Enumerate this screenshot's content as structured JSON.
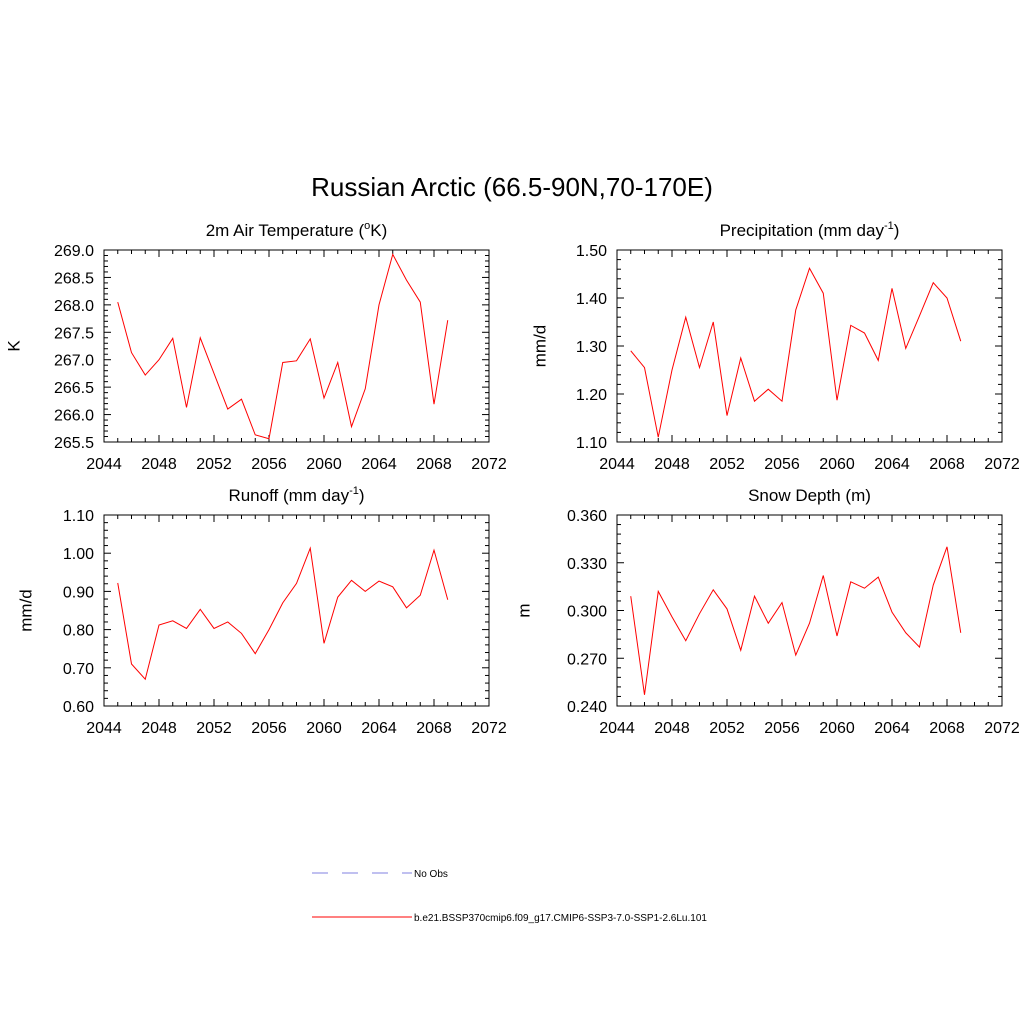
{
  "title": "Russian Arctic (66.5-90N,70-170E)",
  "legend": {
    "items": [
      {
        "label": "No Obs",
        "color": "#9a9ae6",
        "style": "dashed"
      },
      {
        "label": "b.e21.BSSP370cmip6.f09_g17.CMIP6-SSP3-7.0-SSP1-2.6Lu.101",
        "color": "#ff0000",
        "style": "solid"
      }
    ]
  },
  "chart_data": [
    {
      "type": "line",
      "title": "2m Air Temperature (",
      "title_sup": "o",
      "title_tail": "K)",
      "ylabel": "K",
      "xlim": [
        2044,
        2072
      ],
      "xticks": [
        "2044",
        "2048",
        "2052",
        "2056",
        "2060",
        "2064",
        "2068",
        "2072"
      ],
      "ylim": [
        265.5,
        269.0
      ],
      "yticks": [
        "265.5",
        "266.0",
        "266.5",
        "267.0",
        "267.5",
        "268.0",
        "268.5",
        "269.0"
      ],
      "x": [
        2045,
        2046,
        2047,
        2048,
        2049,
        2050,
        2051,
        2052,
        2053,
        2054,
        2055,
        2056,
        2057,
        2058,
        2059,
        2060,
        2061,
        2062,
        2063,
        2064,
        2065,
        2066,
        2067,
        2068,
        2069
      ],
      "series": [
        {
          "color": "#ff0000",
          "values": [
            268.05,
            267.13,
            266.72,
            267.0,
            267.39,
            266.13,
            267.4,
            266.75,
            266.1,
            266.28,
            265.63,
            265.56,
            266.95,
            266.98,
            267.38,
            266.3,
            266.95,
            265.78,
            266.47,
            268.0,
            268.92,
            268.45,
            268.05,
            266.19,
            267.72
          ]
        }
      ]
    },
    {
      "type": "line",
      "title": "Precipitation (mm day",
      "title_sup": "-1",
      "title_tail": ")",
      "ylabel": "mm/d",
      "xlim": [
        2044,
        2072
      ],
      "xticks": [
        "2044",
        "2048",
        "2052",
        "2056",
        "2060",
        "2064",
        "2068",
        "2072"
      ],
      "ylim": [
        1.1,
        1.5
      ],
      "yticks": [
        "1.10",
        "1.20",
        "1.30",
        "1.40",
        "1.50"
      ],
      "x": [
        2045,
        2046,
        2047,
        2048,
        2049,
        2050,
        2051,
        2052,
        2053,
        2054,
        2055,
        2056,
        2057,
        2058,
        2059,
        2060,
        2061,
        2062,
        2063,
        2064,
        2065,
        2066,
        2067,
        2068,
        2069
      ],
      "series": [
        {
          "color": "#ff0000",
          "values": [
            1.29,
            1.255,
            1.11,
            1.25,
            1.36,
            1.255,
            1.35,
            1.155,
            1.275,
            1.185,
            1.21,
            1.185,
            1.375,
            1.462,
            1.41,
            1.187,
            1.343,
            1.327,
            1.27,
            1.42,
            1.295,
            1.363,
            1.432,
            1.4,
            1.31
          ]
        }
      ]
    },
    {
      "type": "line",
      "title": "Runoff (mm day",
      "title_sup": "-1",
      "title_tail": ")",
      "ylabel": "mm/d",
      "xlim": [
        2044,
        2072
      ],
      "xticks": [
        "2044",
        "2048",
        "2052",
        "2056",
        "2060",
        "2064",
        "2068",
        "2072"
      ],
      "ylim": [
        0.6,
        1.1
      ],
      "yticks": [
        "0.60",
        "0.70",
        "0.80",
        "0.90",
        "1.00",
        "1.10"
      ],
      "x": [
        2045,
        2046,
        2047,
        2048,
        2049,
        2050,
        2051,
        2052,
        2053,
        2054,
        2055,
        2056,
        2057,
        2058,
        2059,
        2060,
        2061,
        2062,
        2063,
        2064,
        2065,
        2066,
        2067,
        2068,
        2069
      ],
      "series": [
        {
          "color": "#ff0000",
          "values": [
            0.922,
            0.71,
            0.67,
            0.812,
            0.823,
            0.803,
            0.853,
            0.803,
            0.82,
            0.79,
            0.737,
            0.8,
            0.87,
            0.921,
            1.013,
            0.764,
            0.885,
            0.929,
            0.9,
            0.927,
            0.912,
            0.857,
            0.89,
            1.008,
            0.878
          ]
        }
      ]
    },
    {
      "type": "line",
      "title": "Snow Depth (m)",
      "title_sup": "",
      "title_tail": "",
      "ylabel": "m",
      "xlim": [
        2044,
        2072
      ],
      "xticks": [
        "2044",
        "2048",
        "2052",
        "2056",
        "2060",
        "2064",
        "2068",
        "2072"
      ],
      "ylim": [
        0.24,
        0.36
      ],
      "yticks": [
        "0.240",
        "0.270",
        "0.300",
        "0.330",
        "0.360"
      ],
      "x": [
        2045,
        2046,
        2047,
        2048,
        2049,
        2050,
        2051,
        2052,
        2053,
        2054,
        2055,
        2056,
        2057,
        2058,
        2059,
        2060,
        2061,
        2062,
        2063,
        2064,
        2065,
        2066,
        2067,
        2068,
        2069
      ],
      "series": [
        {
          "color": "#ff0000",
          "values": [
            0.309,
            0.247,
            0.312,
            0.296,
            0.281,
            0.298,
            0.313,
            0.301,
            0.275,
            0.309,
            0.292,
            0.305,
            0.272,
            0.292,
            0.322,
            0.284,
            0.318,
            0.314,
            0.321,
            0.299,
            0.286,
            0.277,
            0.316,
            0.34,
            0.286
          ]
        }
      ]
    }
  ]
}
